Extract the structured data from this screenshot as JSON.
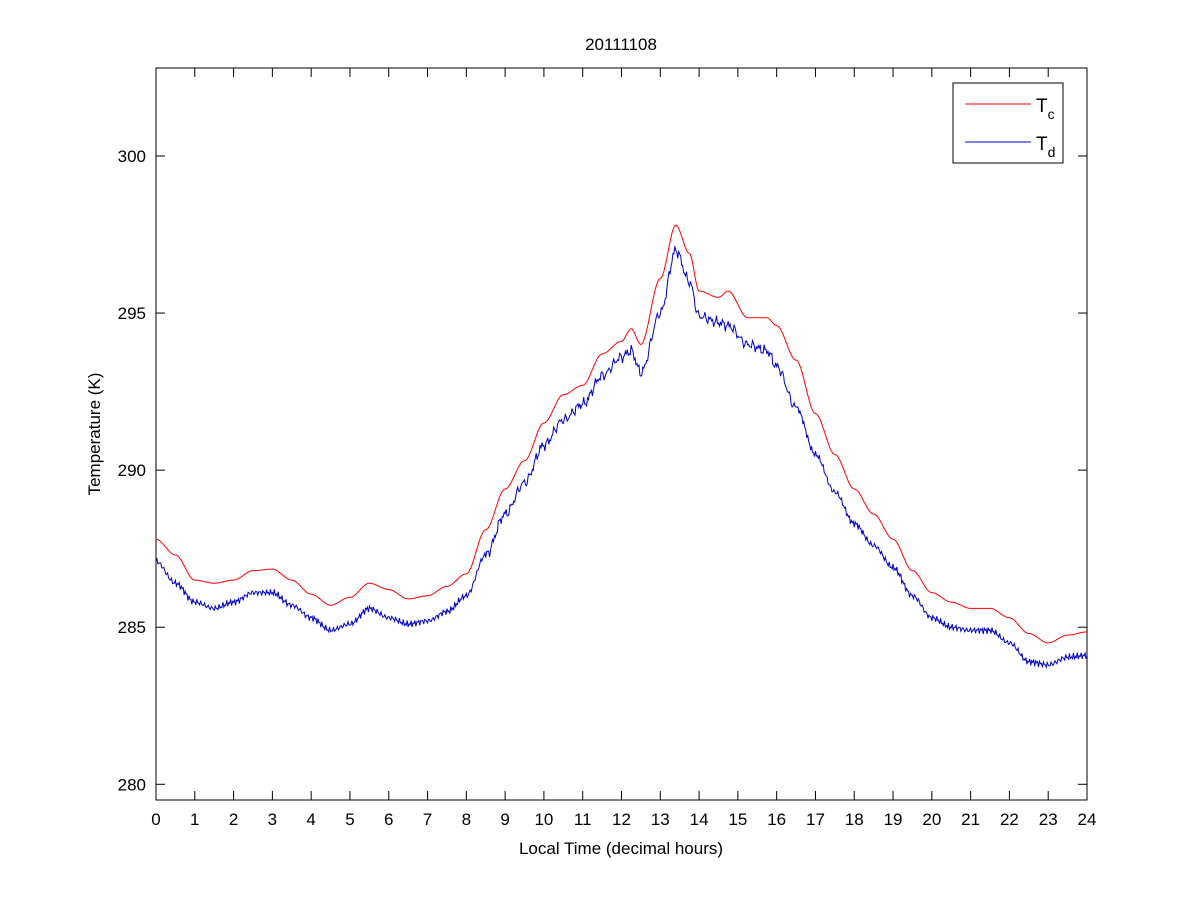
{
  "chart_data": {
    "type": "line",
    "title": "20111108",
    "xlabel": "Local Time (decimal hours)",
    "ylabel": "Temperature (K)",
    "xlim": [
      0,
      24
    ],
    "ylim": [
      279.5,
      302.8
    ],
    "xticks": [
      0,
      1,
      2,
      3,
      4,
      5,
      6,
      7,
      8,
      9,
      10,
      11,
      12,
      13,
      14,
      15,
      16,
      17,
      18,
      19,
      20,
      21,
      22,
      23,
      24
    ],
    "yticks": [
      280,
      285,
      290,
      295,
      300
    ],
    "grid": false,
    "legend_position": "top-right",
    "x": [
      0,
      0.5,
      1,
      1.5,
      2,
      2.5,
      3,
      3.5,
      4,
      4.5,
      5,
      5.5,
      6,
      6.5,
      7,
      7.5,
      8,
      8.5,
      9,
      9.5,
      10,
      10.5,
      11,
      11.5,
      12,
      12.25,
      12.5,
      13,
      13.4,
      13.75,
      14,
      14.5,
      14.75,
      15.25,
      15.75,
      16,
      16.5,
      17,
      17.5,
      18,
      18.5,
      19,
      19.5,
      20,
      20.5,
      21,
      21.5,
      22,
      22.5,
      23,
      23.5,
      24
    ],
    "series": [
      {
        "name": "T",
        "subscript": "c",
        "color": "#ff0000",
        "values": [
          287.8,
          287.3,
          286.5,
          286.4,
          286.5,
          286.8,
          286.85,
          286.5,
          286.05,
          285.7,
          285.95,
          286.4,
          286.2,
          285.9,
          286.0,
          286.3,
          286.7,
          288.1,
          289.4,
          290.3,
          291.5,
          292.4,
          292.7,
          293.7,
          294.1,
          294.5,
          294.0,
          296.1,
          297.8,
          296.9,
          295.7,
          295.5,
          295.7,
          294.85,
          294.85,
          294.6,
          293.5,
          291.8,
          290.5,
          289.4,
          288.6,
          287.8,
          286.8,
          286.1,
          285.8,
          285.6,
          285.6,
          285.3,
          284.8,
          284.5,
          284.75,
          284.85
        ]
      },
      {
        "name": "T",
        "subscript": "d",
        "color": "#0000cc",
        "values": [
          287.1,
          286.4,
          285.8,
          285.6,
          285.8,
          286.1,
          286.1,
          285.7,
          285.3,
          284.9,
          285.1,
          285.6,
          285.3,
          285.1,
          285.2,
          285.5,
          286.0,
          287.3,
          288.6,
          289.6,
          290.8,
          291.6,
          292.1,
          293.0,
          293.6,
          293.8,
          293.1,
          295.0,
          297.0,
          296.0,
          294.9,
          294.7,
          294.6,
          294.0,
          293.8,
          293.3,
          292.0,
          290.5,
          289.3,
          288.3,
          287.6,
          286.9,
          286.0,
          285.3,
          285.0,
          284.9,
          284.9,
          284.5,
          283.9,
          283.8,
          284.05,
          284.1
        ]
      }
    ]
  }
}
